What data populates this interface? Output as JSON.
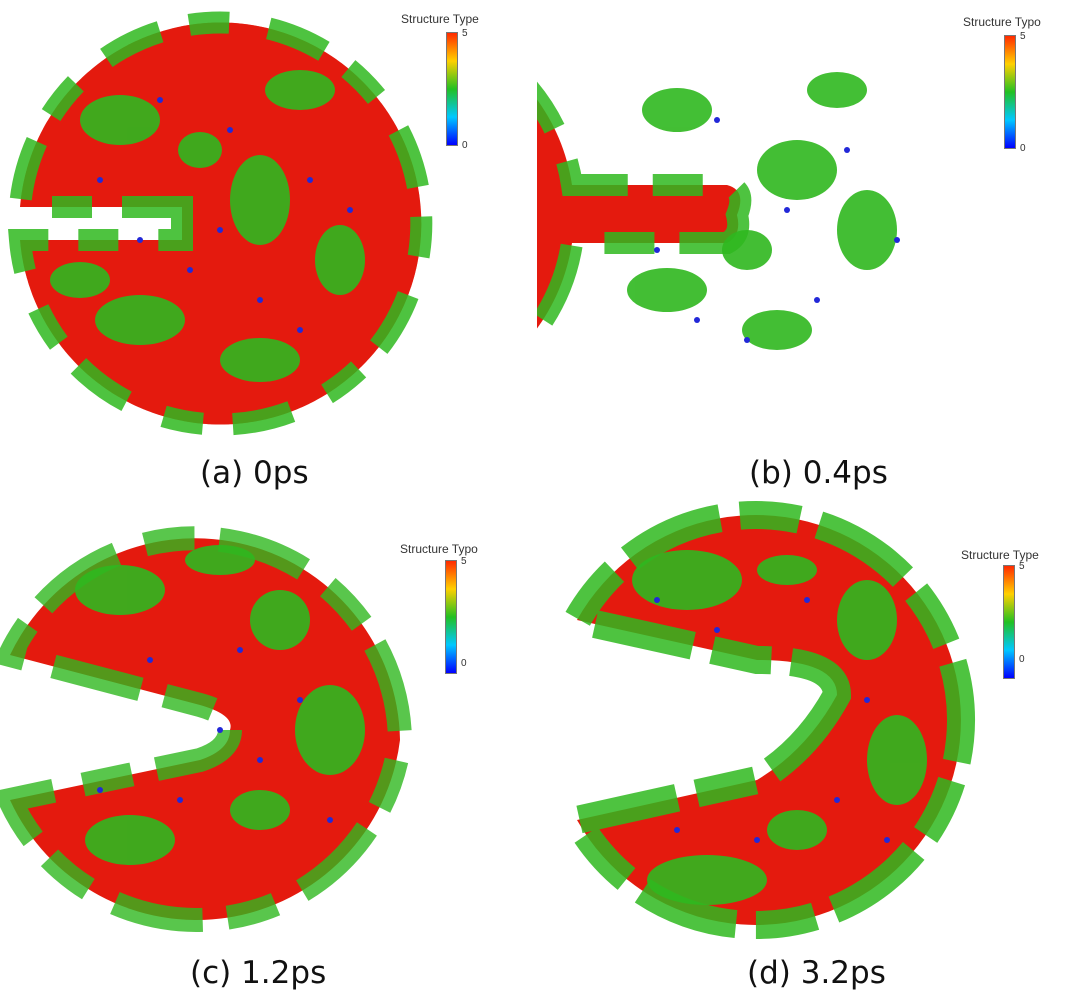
{
  "panels": [
    {
      "id": "a",
      "caption": "(a) 0ps",
      "time_ps": 0,
      "legend_title": "Structure Type",
      "legend_max": "5",
      "legend_min": "0"
    },
    {
      "id": "b",
      "caption": "(b) 0.4ps",
      "time_ps": 0.4,
      "legend_title": "Structure Typo",
      "legend_max": "5",
      "legend_min": "0"
    },
    {
      "id": "c",
      "caption": "(c) 1.2ps",
      "time_ps": 1.2,
      "legend_title": "Structure Typo",
      "legend_max": "5",
      "legend_min": "0"
    },
    {
      "id": "d",
      "caption": "(d) 3.2ps",
      "time_ps": 3.2,
      "legend_title": "Structure Type",
      "legend_max": "5",
      "legend_min": "0"
    }
  ],
  "colors": {
    "atom_red": "#e41a0e",
    "atom_green": "#2fb81f",
    "atom_blue": "#2228d8",
    "colorbar_stops": [
      "#ff2a00",
      "#ffd000",
      "#22c022",
      "#00c8ff",
      "#0000ff"
    ]
  }
}
